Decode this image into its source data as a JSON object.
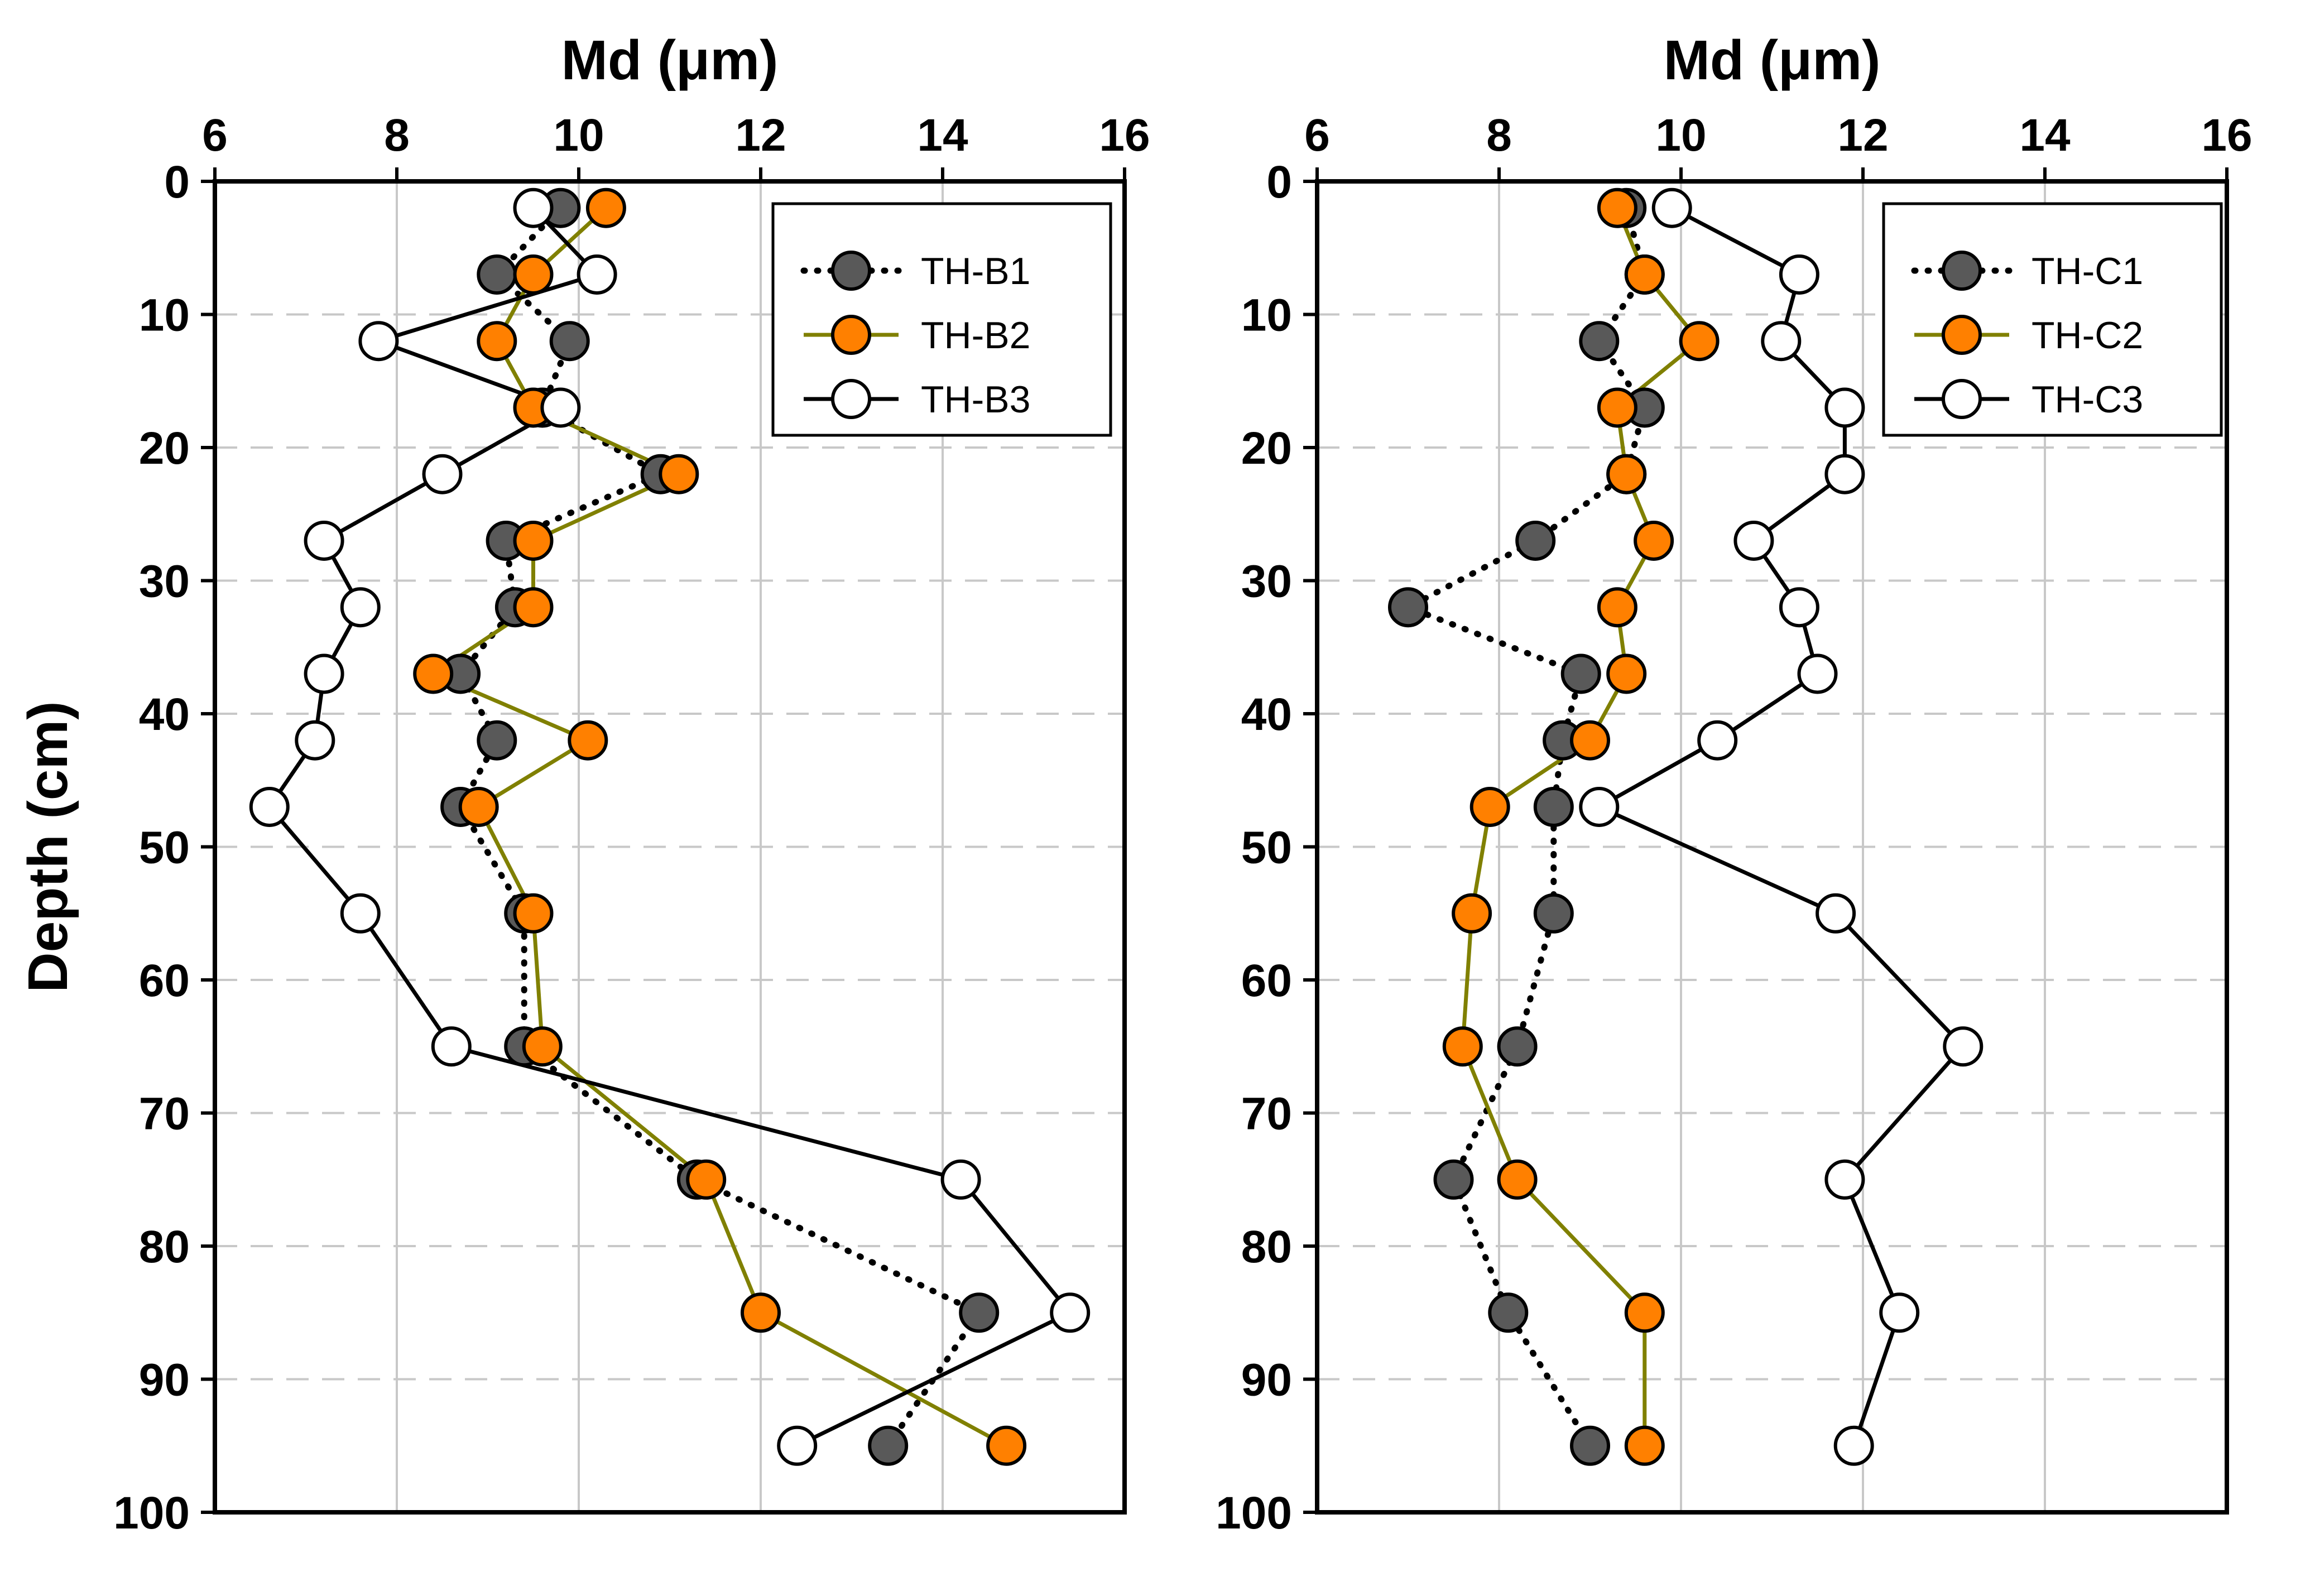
{
  "chart_data": [
    {
      "type": "scatter",
      "title": "",
      "xlabel": "Md (μm)",
      "ylabel": "Depth (cm)",
      "xlim": [
        6,
        16
      ],
      "ylim": [
        0,
        100
      ],
      "y_inverted": true,
      "x_axis_position": "top",
      "x_ticks": [
        "6",
        "8",
        "10",
        "12",
        "14",
        "16"
      ],
      "y_ticks": [
        "0",
        "10",
        "20",
        "30",
        "40",
        "50",
        "60",
        "70",
        "80",
        "90",
        "100"
      ],
      "grid": {
        "vertical": "solid-light-gray",
        "horizontal": "dashed-light-gray"
      },
      "legend_position": "top-right",
      "series": [
        {
          "name": "TH-B1",
          "line": "dotted",
          "line_color": "#000000",
          "marker_fill": "#595959",
          "marker_edge": "#000000",
          "x": [
            9.8,
            9.1,
            9.9,
            9.6,
            10.9,
            9.2,
            9.3,
            8.7,
            9.1,
            8.7,
            9.4,
            9.4,
            11.3,
            14.4,
            13.4
          ],
          "y": [
            2,
            7,
            12,
            17,
            22,
            27,
            32,
            37,
            42,
            47,
            55,
            65,
            75,
            85,
            95
          ]
        },
        {
          "name": "TH-B2",
          "line": "solid",
          "line_color": "#808000",
          "marker_fill": "#ff8000",
          "marker_edge": "#000000",
          "x": [
            10.3,
            9.5,
            9.1,
            9.5,
            11.1,
            9.5,
            9.5,
            8.4,
            10.1,
            8.9,
            9.5,
            9.6,
            11.4,
            12.0,
            14.7
          ],
          "y": [
            2,
            7,
            12,
            17,
            22,
            27,
            32,
            37,
            42,
            47,
            55,
            65,
            75,
            85,
            95
          ]
        },
        {
          "name": "TH-B3",
          "line": "solid",
          "line_color": "#000000",
          "marker_fill": "#ffffff",
          "marker_edge": "#000000",
          "x": [
            9.5,
            10.2,
            7.8,
            9.8,
            8.5,
            7.2,
            7.6,
            7.2,
            7.1,
            6.6,
            7.6,
            8.6,
            14.2,
            15.4,
            12.4
          ],
          "y": [
            2,
            7,
            12,
            17,
            22,
            27,
            32,
            37,
            42,
            47,
            55,
            65,
            75,
            85,
            95
          ]
        }
      ]
    },
    {
      "type": "scatter",
      "title": "",
      "xlabel": "Md (μm)",
      "ylabel": "",
      "xlim": [
        6,
        16
      ],
      "ylim": [
        0,
        100
      ],
      "y_inverted": true,
      "x_axis_position": "top",
      "x_ticks": [
        "6",
        "8",
        "10",
        "12",
        "14",
        "16"
      ],
      "y_ticks": [
        "0",
        "10",
        "20",
        "30",
        "40",
        "50",
        "60",
        "70",
        "80",
        "90",
        "100"
      ],
      "grid": {
        "vertical": "solid-light-gray",
        "horizontal": "dashed-light-gray"
      },
      "legend_position": "top-right",
      "series": [
        {
          "name": "TH-C1",
          "line": "dotted",
          "line_color": "#000000",
          "marker_fill": "#595959",
          "marker_edge": "#000000",
          "x": [
            9.4,
            9.6,
            9.1,
            9.6,
            9.4,
            8.4,
            7.0,
            8.9,
            8.7,
            8.6,
            8.6,
            8.2,
            7.5,
            8.1,
            9.0
          ],
          "y": [
            2,
            7,
            12,
            17,
            22,
            27,
            32,
            37,
            42,
            47,
            55,
            65,
            75,
            85,
            95
          ]
        },
        {
          "name": "TH-C2",
          "line": "solid",
          "line_color": "#808000",
          "marker_fill": "#ff8000",
          "marker_edge": "#000000",
          "x": [
            9.3,
            9.6,
            10.2,
            9.3,
            9.4,
            9.7,
            9.3,
            9.4,
            9.0,
            7.9,
            7.7,
            7.6,
            8.2,
            9.6,
            9.6
          ],
          "y": [
            2,
            7,
            12,
            17,
            22,
            27,
            32,
            37,
            42,
            47,
            55,
            65,
            75,
            85,
            95
          ]
        },
        {
          "name": "TH-C3",
          "line": "solid",
          "line_color": "#000000",
          "marker_fill": "#ffffff",
          "marker_edge": "#000000",
          "x": [
            9.9,
            11.3,
            11.1,
            11.8,
            11.8,
            10.8,
            11.3,
            11.5,
            10.4,
            9.1,
            11.7,
            13.1,
            11.8,
            12.4,
            11.9
          ],
          "y": [
            2,
            7,
            12,
            17,
            22,
            27,
            32,
            37,
            42,
            47,
            55,
            65,
            75,
            85,
            95
          ]
        }
      ]
    }
  ]
}
